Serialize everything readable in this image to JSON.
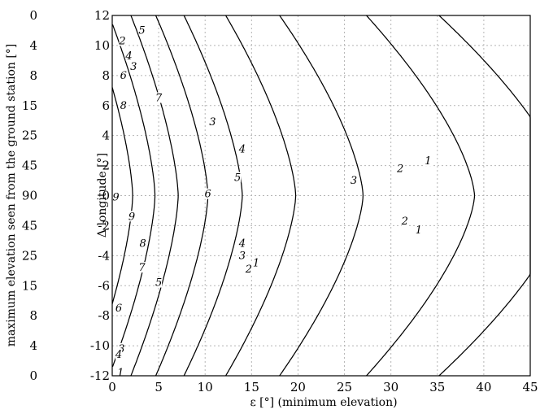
{
  "chart_data": {
    "type": "line",
    "title": "",
    "xlabel": "ε [°] (minimum elevation)",
    "ylabel": "Δ longitude [°]",
    "left_label": "maximum elevation seen from the ground station [°]",
    "xlim": [
      0,
      45
    ],
    "ylim": [
      -12,
      12
    ],
    "x_ticks": [
      0,
      5,
      10,
      15,
      20,
      25,
      30,
      35,
      40,
      45
    ],
    "y_ticks": [
      -12,
      -10,
      -8,
      -6,
      -4,
      -2,
      0,
      2,
      4,
      6,
      8,
      10,
      12
    ],
    "left_ticks": [
      "0",
      "4",
      "8",
      "15",
      "25",
      "45",
      "90",
      "45",
      "25",
      "15",
      "8",
      "4",
      "0"
    ],
    "grid": true,
    "contour_shape": "symmetric about y = 0; x = a - b*|y|^1.5, clipped to the plot area",
    "series": [
      {
        "name": "1",
        "a": 49.0,
        "b": 0.3325,
        "label_points": [
          [
            34,
            2.3
          ],
          [
            33,
            -2.3
          ],
          [
            15.5,
            -4.5
          ],
          [
            0.9,
            -11.8
          ]
        ]
      },
      {
        "name": "2",
        "a": 39.0,
        "b": 0.28,
        "label_points": [
          [
            31,
            1.8
          ],
          [
            31.5,
            -1.7
          ],
          [
            14.7,
            -4.9
          ],
          [
            1.1,
            10.3
          ]
        ]
      },
      {
        "name": "3",
        "a": 27.0,
        "b": 0.2162,
        "label_points": [
          [
            26,
            1.0
          ],
          [
            14,
            -4.0
          ],
          [
            1.0,
            -10.2
          ],
          [
            2.3,
            8.6
          ],
          [
            10.8,
            4.9
          ]
        ]
      },
      {
        "name": "4",
        "a": 19.75,
        "b": 0.1812,
        "label_points": [
          [
            14,
            3.1
          ],
          [
            14,
            -3.2
          ],
          [
            0.7,
            -10.6
          ],
          [
            1.8,
            9.3
          ]
        ]
      },
      {
        "name": "5",
        "a": 14.0,
        "b": 0.151,
        "label_points": [
          [
            13.5,
            1.2
          ],
          [
            5,
            -5.8
          ],
          [
            3.2,
            11.0
          ]
        ]
      },
      {
        "name": "6",
        "a": 10.3,
        "b": 0.135,
        "label_points": [
          [
            10.3,
            0.1
          ],
          [
            0.7,
            -7.5
          ],
          [
            1.2,
            8.0
          ]
        ]
      },
      {
        "name": "7",
        "a": 7.1,
        "b": 0.1225,
        "label_points": [
          [
            5,
            6.5
          ],
          [
            3.2,
            -4.8
          ]
        ]
      },
      {
        "name": "8",
        "a": 4.6,
        "b": 0.1186,
        "label_points": [
          [
            3.3,
            -3.2
          ],
          [
            1.2,
            6.0
          ]
        ]
      },
      {
        "name": "9",
        "a": 2.2,
        "b": 0.1136,
        "label_points": [
          [
            2.1,
            -1.4
          ],
          [
            0.4,
            -0.1
          ]
        ]
      }
    ]
  }
}
